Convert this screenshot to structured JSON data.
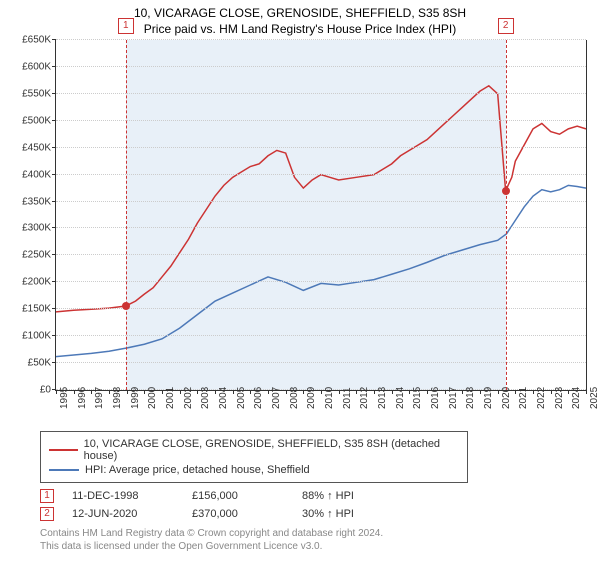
{
  "title": "10, VICARAGE CLOSE, GRENOSIDE, SHEFFIELD, S35 8SH",
  "subtitle": "Price paid vs. HM Land Registry's House Price Index (HPI)",
  "chart": {
    "type": "line",
    "background_color": "#ffffff",
    "shaded_band_color": "#e8f0f8",
    "marker_line_color": "#cc3333",
    "marker_point_color": "#cc3333",
    "grid_color": "#cccccc",
    "axis_color": "#333333",
    "ylim": [
      0,
      650000
    ],
    "ytick_step": 50000,
    "ytick_prefix": "£",
    "ytick_suffix_k": "K",
    "label_fontsize": 10,
    "xmin": 1995,
    "xmax": 2025,
    "xtick_years": [
      1995,
      1996,
      1997,
      1998,
      1999,
      2000,
      2001,
      2002,
      2003,
      2004,
      2005,
      2006,
      2007,
      2008,
      2009,
      2010,
      2011,
      2012,
      2013,
      2014,
      2015,
      2016,
      2017,
      2018,
      2019,
      2020,
      2021,
      2022,
      2023,
      2024,
      2025
    ],
    "shaded_start": 1998.95,
    "shaded_end": 2020.45,
    "series": [
      {
        "name": "property",
        "label": "10, VICARAGE CLOSE, GRENOSIDE, SHEFFIELD, S35 8SH (detached house)",
        "color": "#cc3333",
        "line_width": 1.5,
        "points": [
          [
            1995,
            145000
          ],
          [
            1996,
            148000
          ],
          [
            1997,
            150000
          ],
          [
            1998,
            152000
          ],
          [
            1998.95,
            156000
          ],
          [
            1999.5,
            165000
          ],
          [
            2000,
            178000
          ],
          [
            2000.5,
            190000
          ],
          [
            2001,
            210000
          ],
          [
            2001.5,
            230000
          ],
          [
            2002,
            255000
          ],
          [
            2002.5,
            280000
          ],
          [
            2003,
            310000
          ],
          [
            2003.5,
            335000
          ],
          [
            2004,
            360000
          ],
          [
            2004.5,
            380000
          ],
          [
            2005,
            395000
          ],
          [
            2005.5,
            405000
          ],
          [
            2006,
            415000
          ],
          [
            2006.5,
            420000
          ],
          [
            2007,
            435000
          ],
          [
            2007.5,
            445000
          ],
          [
            2008,
            440000
          ],
          [
            2008.5,
            395000
          ],
          [
            2009,
            375000
          ],
          [
            2009.5,
            390000
          ],
          [
            2010,
            400000
          ],
          [
            2010.5,
            395000
          ],
          [
            2011,
            390000
          ],
          [
            2012,
            395000
          ],
          [
            2013,
            400000
          ],
          [
            2013.5,
            410000
          ],
          [
            2014,
            420000
          ],
          [
            2014.5,
            435000
          ],
          [
            2015,
            445000
          ],
          [
            2015.5,
            455000
          ],
          [
            2016,
            465000
          ],
          [
            2016.5,
            480000
          ],
          [
            2017,
            495000
          ],
          [
            2017.5,
            510000
          ],
          [
            2018,
            525000
          ],
          [
            2018.5,
            540000
          ],
          [
            2019,
            555000
          ],
          [
            2019.5,
            565000
          ],
          [
            2020,
            550000
          ],
          [
            2020.45,
            370000
          ],
          [
            2020.8,
            395000
          ],
          [
            2021,
            425000
          ],
          [
            2021.5,
            455000
          ],
          [
            2022,
            485000
          ],
          [
            2022.5,
            495000
          ],
          [
            2023,
            480000
          ],
          [
            2023.5,
            475000
          ],
          [
            2024,
            485000
          ],
          [
            2024.5,
            490000
          ],
          [
            2025,
            485000
          ]
        ]
      },
      {
        "name": "hpi",
        "label": "HPI: Average price, detached house, Sheffield",
        "color": "#4d79b8",
        "line_width": 1.5,
        "points": [
          [
            1995,
            62000
          ],
          [
            1996,
            65000
          ],
          [
            1997,
            68000
          ],
          [
            1998,
            72000
          ],
          [
            1999,
            78000
          ],
          [
            2000,
            85000
          ],
          [
            2001,
            95000
          ],
          [
            2002,
            115000
          ],
          [
            2003,
            140000
          ],
          [
            2004,
            165000
          ],
          [
            2005,
            180000
          ],
          [
            2006,
            195000
          ],
          [
            2007,
            210000
          ],
          [
            2008,
            200000
          ],
          [
            2009,
            185000
          ],
          [
            2010,
            198000
          ],
          [
            2011,
            195000
          ],
          [
            2012,
            200000
          ],
          [
            2013,
            205000
          ],
          [
            2014,
            215000
          ],
          [
            2015,
            225000
          ],
          [
            2016,
            237000
          ],
          [
            2017,
            250000
          ],
          [
            2018,
            260000
          ],
          [
            2019,
            270000
          ],
          [
            2020,
            278000
          ],
          [
            2020.5,
            290000
          ],
          [
            2021,
            315000
          ],
          [
            2021.5,
            340000
          ],
          [
            2022,
            360000
          ],
          [
            2022.5,
            372000
          ],
          [
            2023,
            368000
          ],
          [
            2023.5,
            372000
          ],
          [
            2024,
            380000
          ],
          [
            2024.5,
            378000
          ],
          [
            2025,
            375000
          ]
        ]
      }
    ],
    "markers": [
      {
        "num": "1",
        "x": 1998.95,
        "y": 156000
      },
      {
        "num": "2",
        "x": 2020.45,
        "y": 370000
      }
    ]
  },
  "legend": {
    "border_color": "#555555"
  },
  "transactions": {
    "columns": {
      "date_width": 120,
      "price_width": 110,
      "delta_width": 120
    },
    "rows": [
      {
        "num": "1",
        "date": "11-DEC-1998",
        "price": "£156,000",
        "delta": "88% ↑ HPI"
      },
      {
        "num": "2",
        "date": "12-JUN-2020",
        "price": "£370,000",
        "delta": "30% ↑ HPI"
      }
    ]
  },
  "footer": {
    "line1": "Contains HM Land Registry data © Crown copyright and database right 2024.",
    "line2": "This data is licensed under the Open Government Licence v3.0."
  }
}
